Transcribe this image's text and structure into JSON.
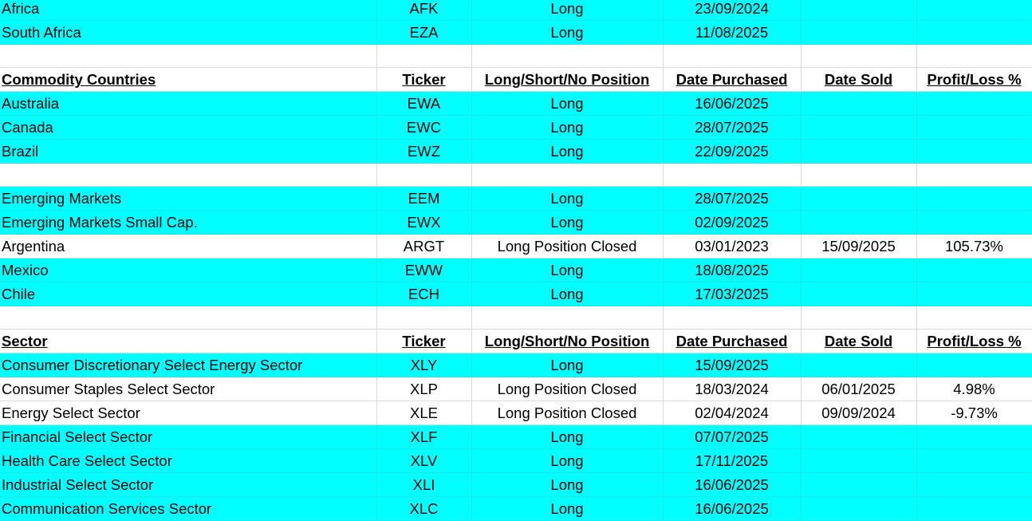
{
  "colors": {
    "highlight": "#00ffff",
    "grid": "#dadada"
  },
  "rows": [
    {
      "type": "data",
      "highlight": true,
      "cells": [
        "Africa",
        "AFK",
        "Long",
        "23/09/2024",
        "",
        ""
      ]
    },
    {
      "type": "data",
      "highlight": true,
      "cells": [
        "South Africa",
        "EZA",
        "Long",
        "11/08/2025",
        "",
        ""
      ]
    },
    {
      "type": "blank",
      "cells": [
        "",
        "",
        "",
        "",
        "",
        ""
      ]
    },
    {
      "type": "header",
      "cells": [
        "Commodity Countries",
        "Ticker",
        "Long/Short/No Position",
        "Date Purchased",
        "Date Sold",
        "Profit/Loss %"
      ]
    },
    {
      "type": "data",
      "highlight": true,
      "cells": [
        "Australia",
        "EWA",
        "Long",
        "16/06/2025",
        "",
        ""
      ]
    },
    {
      "type": "data",
      "highlight": true,
      "cells": [
        "Canada",
        "EWC",
        "Long",
        "28/07/2025",
        "",
        ""
      ]
    },
    {
      "type": "data",
      "highlight": true,
      "cells": [
        "Brazil",
        "EWZ",
        "Long",
        "22/09/2025",
        "",
        ""
      ]
    },
    {
      "type": "blank",
      "cells": [
        "",
        "",
        "",
        "",
        "",
        ""
      ]
    },
    {
      "type": "data",
      "highlight": true,
      "cells": [
        "Emerging Markets",
        "EEM",
        "Long",
        "28/07/2025",
        "",
        ""
      ]
    },
    {
      "type": "data",
      "highlight": true,
      "cells": [
        "Emerging Markets Small Cap.",
        "EWX",
        "Long",
        "02/09/2025",
        "",
        ""
      ]
    },
    {
      "type": "data",
      "highlight": false,
      "cells": [
        "Argentina",
        "ARGT",
        "Long Position Closed",
        "03/01/2023",
        "15/09/2025",
        "105.73%"
      ]
    },
    {
      "type": "data",
      "highlight": true,
      "cells": [
        "Mexico",
        "EWW",
        "Long",
        "18/08/2025",
        "",
        ""
      ]
    },
    {
      "type": "data",
      "highlight": true,
      "cells": [
        "Chile",
        "ECH",
        "Long",
        "17/03/2025",
        "",
        ""
      ]
    },
    {
      "type": "blank",
      "cells": [
        "",
        "",
        "",
        "",
        "",
        ""
      ]
    },
    {
      "type": "header",
      "cells": [
        "Sector",
        "Ticker",
        "Long/Short/No Position",
        "Date Purchased",
        "Date Sold",
        "Profit/Loss %"
      ]
    },
    {
      "type": "data",
      "highlight": true,
      "cells": [
        "Consumer Discretionary Select Energy Sector",
        "XLY",
        "Long",
        "15/09/2025",
        "",
        ""
      ]
    },
    {
      "type": "data",
      "highlight": false,
      "cells": [
        "Consumer Staples Select Sector",
        "XLP",
        "Long Position Closed",
        "18/03/2024",
        "06/01/2025",
        "4.98%"
      ]
    },
    {
      "type": "data",
      "highlight": false,
      "cells": [
        "Energy Select Sector",
        "XLE",
        "Long Position Closed",
        "02/04/2024",
        "09/09/2024",
        "-9.73%"
      ]
    },
    {
      "type": "data",
      "highlight": true,
      "cells": [
        "Financial Select Sector",
        "XLF",
        "Long",
        "07/07/2025",
        "",
        ""
      ]
    },
    {
      "type": "data",
      "highlight": true,
      "cells": [
        "Health Care Select Sector",
        "XLV",
        "Long",
        "17/11/2025",
        "",
        ""
      ]
    },
    {
      "type": "data",
      "highlight": true,
      "cells": [
        "Industrial Select Sector",
        "XLI",
        "Long",
        "16/06/2025",
        "",
        ""
      ]
    },
    {
      "type": "data",
      "highlight": true,
      "cells": [
        "Communication Services Sector",
        "XLC",
        "Long",
        "16/06/2025",
        "",
        ""
      ]
    }
  ]
}
